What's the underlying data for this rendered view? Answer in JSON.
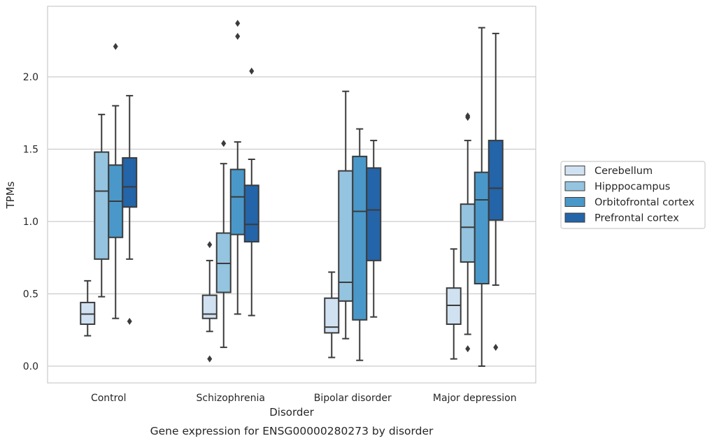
{
  "chart_data": {
    "type": "box",
    "caption": "Gene expression for ENSG00000280273 by disorder",
    "xlabel": "Disorder",
    "ylabel": "TPMs",
    "ylim": [
      -0.11,
      2.5
    ],
    "yticks": [
      0.0,
      0.5,
      1.0,
      1.5,
      2.0
    ],
    "ytick_labels": [
      "0.0",
      "0.5",
      "1.0",
      "1.5",
      "2.0"
    ],
    "grid": "horizontal",
    "legend_position": "right",
    "categories": [
      "Control",
      "Schizophrenia",
      "Bipolar disorder",
      "Major depression"
    ],
    "series": [
      {
        "name": "Cerebellum",
        "color": "#d0e1f2",
        "boxes": [
          {
            "whisker_low": 0.21,
            "q1": 0.29,
            "median": 0.36,
            "q3": 0.44,
            "whisker_high": 0.59,
            "outliers": []
          },
          {
            "whisker_low": 0.24,
            "q1": 0.33,
            "median": 0.36,
            "q3": 0.49,
            "whisker_high": 0.73,
            "outliers": [
              0.05,
              0.84
            ]
          },
          {
            "whisker_low": 0.06,
            "q1": 0.23,
            "median": 0.27,
            "q3": 0.47,
            "whisker_high": 0.65,
            "outliers": []
          },
          {
            "whisker_low": 0.05,
            "q1": 0.29,
            "median": 0.42,
            "q3": 0.54,
            "whisker_high": 0.81,
            "outliers": []
          }
        ]
      },
      {
        "name": "Hipppocampus",
        "color": "#94c4df",
        "boxes": [
          {
            "whisker_low": 0.48,
            "q1": 0.74,
            "median": 1.21,
            "q3": 1.48,
            "whisker_high": 1.74,
            "outliers": []
          },
          {
            "whisker_low": 0.13,
            "q1": 0.51,
            "median": 0.71,
            "q3": 0.92,
            "whisker_high": 1.4,
            "outliers": [
              1.54
            ]
          },
          {
            "whisker_low": 0.19,
            "q1": 0.45,
            "median": 0.58,
            "q3": 1.35,
            "whisker_high": 1.9,
            "outliers": []
          },
          {
            "whisker_low": 0.22,
            "q1": 0.72,
            "median": 0.96,
            "q3": 1.12,
            "whisker_high": 1.56,
            "outliers": [
              0.12,
              1.72,
              1.73
            ]
          }
        ]
      },
      {
        "name": "Orbitofrontal cortex",
        "color": "#4a98c9",
        "boxes": [
          {
            "whisker_low": 0.33,
            "q1": 0.89,
            "median": 1.14,
            "q3": 1.39,
            "whisker_high": 1.8,
            "outliers": [
              2.21
            ]
          },
          {
            "whisker_low": 0.36,
            "q1": 0.91,
            "median": 1.17,
            "q3": 1.36,
            "whisker_high": 1.55,
            "outliers": [
              2.28,
              2.37
            ]
          },
          {
            "whisker_low": 0.04,
            "q1": 0.32,
            "median": 1.07,
            "q3": 1.45,
            "whisker_high": 1.64,
            "outliers": []
          },
          {
            "whisker_low": 0.0,
            "q1": 0.57,
            "median": 1.15,
            "q3": 1.34,
            "whisker_high": 2.34,
            "outliers": []
          }
        ]
      },
      {
        "name": "Prefrontal cortex",
        "color": "#2464a8",
        "boxes": [
          {
            "whisker_low": 0.74,
            "q1": 1.1,
            "median": 1.24,
            "q3": 1.44,
            "whisker_high": 1.87,
            "outliers": [
              0.31
            ]
          },
          {
            "whisker_low": 0.35,
            "q1": 0.86,
            "median": 0.98,
            "q3": 1.25,
            "whisker_high": 1.43,
            "outliers": [
              2.04
            ]
          },
          {
            "whisker_low": 0.34,
            "q1": 0.73,
            "median": 1.08,
            "q3": 1.37,
            "whisker_high": 1.56,
            "outliers": []
          },
          {
            "whisker_low": 0.56,
            "q1": 1.01,
            "median": 1.23,
            "q3": 1.56,
            "whisker_high": 2.3,
            "outliers": [
              0.13
            ]
          }
        ]
      }
    ]
  }
}
